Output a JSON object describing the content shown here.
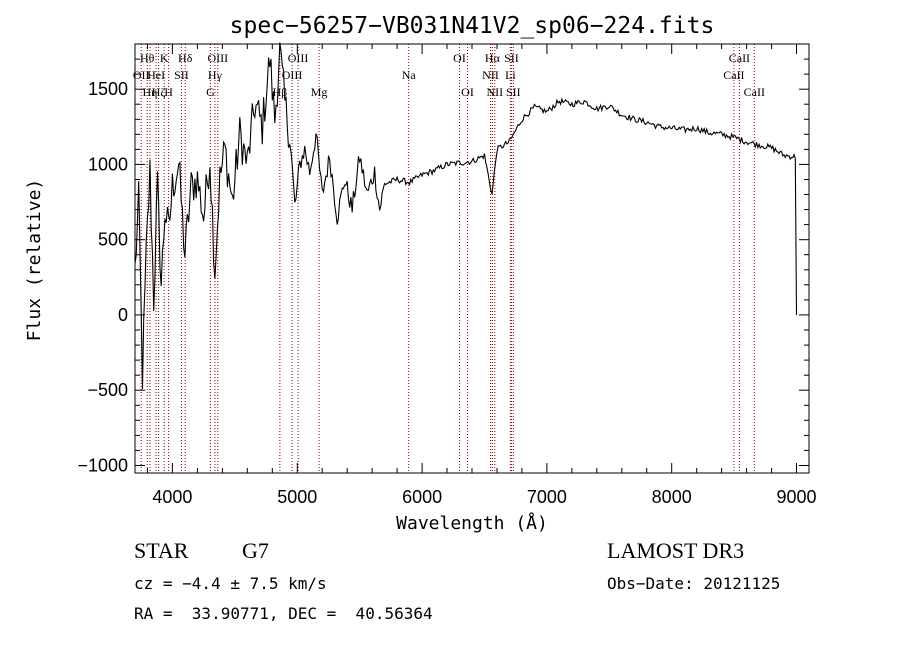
{
  "chart_data": {
    "type": "line",
    "title": "spec−56257−VB031N41V2_sp06−224.fits",
    "xlabel": "Wavelength (Å)",
    "ylabel": "Flux (relative)",
    "xlim": [
      3700,
      9100
    ],
    "ylim": [
      -1050,
      1800
    ],
    "xticks": [
      4000,
      5000,
      6000,
      7000,
      8000,
      9000
    ],
    "xtick_labels": [
      "4000",
      "5000",
      "6000",
      "7000",
      "8000",
      "9000"
    ],
    "yticks": [
      -1000,
      -500,
      0,
      500,
      1000,
      1500
    ],
    "ytick_labels": [
      "−1000",
      "−500",
      "0",
      "500",
      "1000",
      "1500"
    ],
    "series": [
      {
        "name": "spectrum",
        "color": "#000000",
        "x": [
          3700,
          3730,
          3760,
          3790,
          3820,
          3850,
          3880,
          3910,
          3940,
          3970,
          4000,
          4050,
          4100,
          4150,
          4200,
          4250,
          4300,
          4340,
          4380,
          4420,
          4480,
          4540,
          4600,
          4660,
          4720,
          4780,
          4820,
          4860,
          4900,
          4940,
          4980,
          5020,
          5060,
          5100,
          5150,
          5200,
          5260,
          5320,
          5380,
          5440,
          5500,
          5560,
          5620,
          5660,
          5700,
          5800,
          5900,
          6000,
          6100,
          6200,
          6300,
          6400,
          6500,
          6560,
          6600,
          6700,
          6800,
          6900,
          7000,
          7100,
          7200,
          7300,
          7400,
          7500,
          7600,
          7700,
          7800,
          7900,
          8000,
          8100,
          8200,
          8300,
          8400,
          8500,
          8600,
          8700,
          8800,
          8900,
          8990,
          9000
        ],
        "y": [
          300,
          750,
          -400,
          400,
          950,
          100,
          850,
          200,
          700,
          550,
          850,
          1000,
          400,
          850,
          900,
          650,
          1050,
          300,
          900,
          1100,
          750,
          1200,
          1000,
          1400,
          1250,
          1700,
          1300,
          1750,
          1400,
          1200,
          700,
          1000,
          1100,
          950,
          1200,
          800,
          1050,
          650,
          900,
          700,
          1050,
          800,
          950,
          700,
          870,
          900,
          880,
          930,
          960,
          1000,
          1010,
          1020,
          1060,
          800,
          1100,
          1150,
          1300,
          1380,
          1350,
          1420,
          1400,
          1420,
          1370,
          1390,
          1330,
          1300,
          1280,
          1250,
          1240,
          1230,
          1240,
          1210,
          1200,
          1180,
          1150,
          1130,
          1110,
          1060,
          1050,
          0
        ]
      }
    ],
    "line_markers": {
      "color": "#8b0000",
      "lines": [
        {
          "x": 3750,
          "label": "OII",
          "row": 1
        },
        {
          "x": 3798,
          "label": "Hθ",
          "row": 0
        },
        {
          "x": 3820,
          "label": "Hη",
          "row": 2
        },
        {
          "x": 3869,
          "label": "HeI",
          "row": 1
        },
        {
          "x": 3889,
          "label": "Hζ",
          "row": 2
        },
        {
          "x": 3934,
          "label": "K",
          "row": 0
        },
        {
          "x": 3969,
          "label": "H",
          "row": 2
        },
        {
          "x": 4072,
          "label": "SII",
          "row": 1
        },
        {
          "x": 4102,
          "label": "Hδ",
          "row": 0
        },
        {
          "x": 4304,
          "label": "G",
          "row": 2
        },
        {
          "x": 4340,
          "label": "Hγ",
          "row": 1
        },
        {
          "x": 4363,
          "label": "OIII",
          "row": 0
        },
        {
          "x": 4861,
          "label": "Hβ",
          "row": 2
        },
        {
          "x": 4959,
          "label": "OIII",
          "row": 1
        },
        {
          "x": 5007,
          "label": "OIII",
          "row": 0
        },
        {
          "x": 5175,
          "label": "Mg",
          "row": 2
        },
        {
          "x": 5893,
          "label": "Na",
          "row": 1
        },
        {
          "x": 6300,
          "label": "OI",
          "row": 0
        },
        {
          "x": 6364,
          "label": "OI",
          "row": 2
        },
        {
          "x": 6548,
          "label": "NII",
          "row": 1
        },
        {
          "x": 6563,
          "label": "Hα",
          "row": 0
        },
        {
          "x": 6583,
          "label": "NII",
          "row": 2
        },
        {
          "x": 6708,
          "label": "Li",
          "row": 1
        },
        {
          "x": 6716,
          "label": "SII",
          "row": 0
        },
        {
          "x": 6731,
          "label": "SII",
          "row": 2
        },
        {
          "x": 8498,
          "label": "CaII",
          "row": 1
        },
        {
          "x": 8542,
          "label": "CaII",
          "row": 0
        },
        {
          "x": 8662,
          "label": "CaII",
          "row": 2
        }
      ]
    }
  },
  "info": {
    "object_class": "STAR",
    "subclass": "G7",
    "survey": "LAMOST DR3",
    "cz": "cz = −4.4 ± 7.5 km/s",
    "obs_date": "Obs−Date: 20121125",
    "coords": "RA =  33.90771, DEC =  40.56364"
  }
}
